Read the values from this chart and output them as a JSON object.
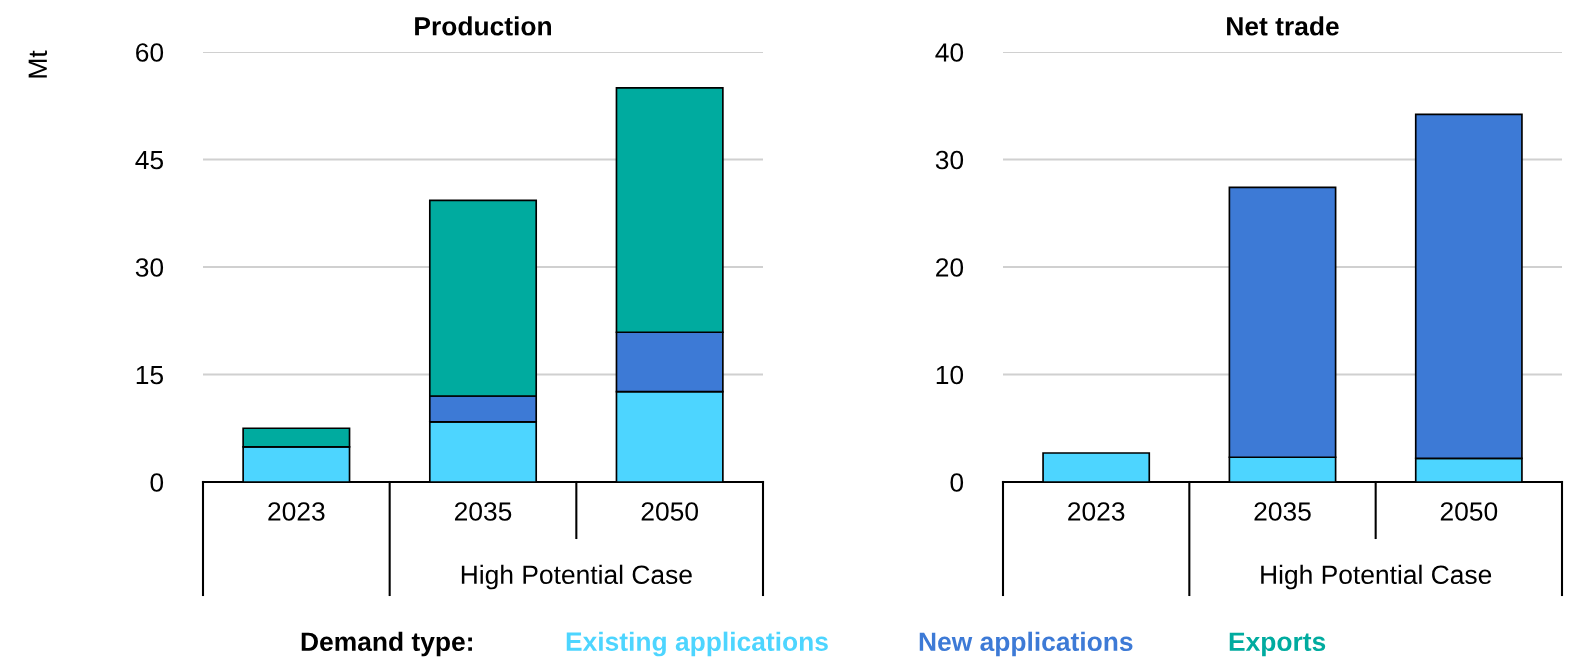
{
  "chart_data": [
    {
      "type": "bar",
      "title": "Production",
      "ylabel": "Mt",
      "categories": [
        "2023",
        "2035",
        "2050"
      ],
      "stacked": true,
      "series": [
        {
          "name": "Existing applications",
          "color": "#4dd5ff",
          "values": [
            4.9,
            8.4,
            12.6
          ]
        },
        {
          "name": "New applications",
          "color": "#3d7ad6",
          "values": [
            null,
            3.6,
            8.3
          ]
        },
        {
          "name": "Exports",
          "color": "#00ab9f",
          "values": [
            2.6,
            27.3,
            34.1
          ]
        }
      ],
      "ylim": [
        0,
        60
      ],
      "yticks": [
        0,
        15,
        30,
        45,
        60
      ],
      "grid": "y",
      "legend": "bottom",
      "legend_title": "Demand type:",
      "annotations": [
        "High Potential Case"
      ]
    },
    {
      "type": "bar",
      "title": "Net trade",
      "categories": [
        "2023",
        "2035",
        "2050"
      ],
      "stacked": true,
      "series": [
        {
          "color": "#4dd5ff",
          "values": [
            2.7,
            2.3,
            2.2
          ]
        },
        {
          "color": "#3d7ad6",
          "values": [
            null,
            25.1,
            32.0
          ]
        }
      ],
      "ylim": [
        0,
        40
      ],
      "yticks": [
        0,
        10,
        20,
        30,
        40
      ],
      "grid": "y",
      "annotations": [
        "High Potential Case"
      ]
    }
  ]
}
